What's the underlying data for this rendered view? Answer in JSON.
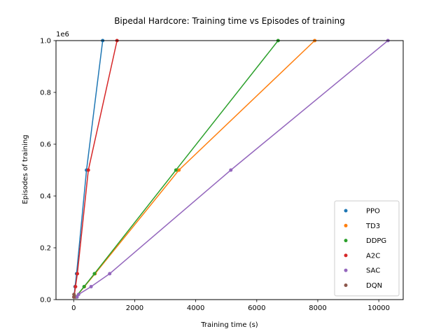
{
  "chart_data": {
    "type": "scatter",
    "title": "Bipedal Hardcore: Training time vs Episodes of training",
    "xlabel": "Training time (s)",
    "ylabel": "Episodes of training",
    "y_offset_label": "1e6",
    "xlim": [
      -580,
      10800
    ],
    "ylim": [
      0,
      1000000
    ],
    "xticks": [
      0,
      2000,
      4000,
      6000,
      8000,
      10000
    ],
    "xtick_labels": [
      "0",
      "2000",
      "4000",
      "6000",
      "8000",
      "10000"
    ],
    "yticks": [
      0,
      200000,
      400000,
      600000,
      800000,
      1000000
    ],
    "ytick_labels": [
      "0.0",
      "0.2",
      "0.4",
      "0.6",
      "0.8",
      "1.0"
    ],
    "grid": false,
    "legend_position": "lower right",
    "series": [
      {
        "name": "PPO",
        "color": "#1f77b4",
        "points": [
          [
            10,
            10000
          ],
          [
            45,
            50000
          ],
          [
            95,
            100000
          ],
          [
            420,
            500000
          ],
          [
            950,
            1000000
          ]
        ]
      },
      {
        "name": "TD3",
        "color": "#ff7f0e",
        "points": [
          [
            70,
            10000
          ],
          [
            350,
            50000
          ],
          [
            700,
            100000
          ],
          [
            3450,
            500000
          ],
          [
            7900,
            1000000
          ]
        ]
      },
      {
        "name": "DDPG",
        "color": "#2ca02c",
        "points": [
          [
            65,
            10000
          ],
          [
            340,
            50000
          ],
          [
            680,
            100000
          ],
          [
            3350,
            500000
          ],
          [
            6700,
            1000000
          ]
        ]
      },
      {
        "name": "A2C",
        "color": "#d62728",
        "points": [
          [
            12,
            10000
          ],
          [
            60,
            50000
          ],
          [
            120,
            100000
          ],
          [
            480,
            500000
          ],
          [
            1420,
            1000000
          ]
        ]
      },
      {
        "name": "SAC",
        "color": "#9467bd",
        "points": [
          [
            110,
            10000
          ],
          [
            160,
            20000
          ],
          [
            570,
            50000
          ],
          [
            1180,
            100000
          ],
          [
            5150,
            500000
          ],
          [
            10300,
            1000000
          ]
        ]
      },
      {
        "name": "DQN",
        "color": "#8c564b",
        "points": [
          [
            5,
            10000
          ],
          [
            10,
            20000
          ]
        ]
      }
    ]
  }
}
